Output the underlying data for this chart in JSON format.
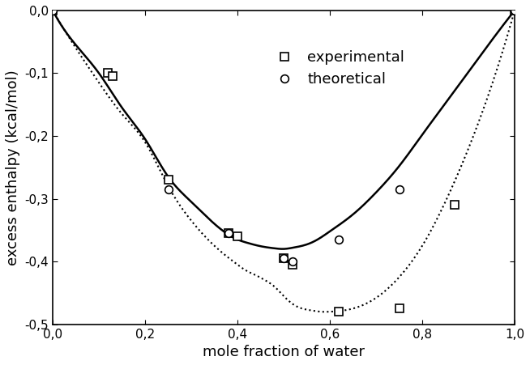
{
  "exp_x": [
    0.0,
    0.12,
    0.13,
    0.25,
    0.38,
    0.4,
    0.5,
    0.52,
    0.62,
    0.75,
    0.87,
    1.0
  ],
  "exp_y": [
    0.0,
    -0.1,
    -0.105,
    -0.27,
    -0.355,
    -0.36,
    -0.395,
    -0.405,
    -0.48,
    -0.475,
    -0.31,
    0.0
  ],
  "theo_x": [
    0.0,
    0.25,
    0.38,
    0.5,
    0.52,
    0.62,
    0.75,
    1.0
  ],
  "theo_y": [
    0.0,
    -0.285,
    -0.355,
    -0.395,
    -0.4,
    -0.365,
    -0.285,
    0.0
  ],
  "solid_curve_x": [
    0.0,
    0.05,
    0.1,
    0.15,
    0.2,
    0.25,
    0.3,
    0.35,
    0.4,
    0.42,
    0.44,
    0.46,
    0.48,
    0.5,
    0.52,
    0.54,
    0.56,
    0.58,
    0.6,
    0.65,
    0.7,
    0.75,
    0.8,
    0.85,
    0.9,
    0.95,
    1.0
  ],
  "solid_curve_y": [
    0.0,
    -0.055,
    -0.1,
    -0.155,
    -0.205,
    -0.265,
    -0.305,
    -0.34,
    -0.365,
    -0.37,
    -0.374,
    -0.377,
    -0.379,
    -0.38,
    -0.378,
    -0.375,
    -0.37,
    -0.362,
    -0.352,
    -0.325,
    -0.29,
    -0.248,
    -0.198,
    -0.148,
    -0.098,
    -0.048,
    0.0
  ],
  "dotted_curve_x": [
    0.0,
    0.05,
    0.1,
    0.15,
    0.2,
    0.25,
    0.3,
    0.35,
    0.4,
    0.42,
    0.44,
    0.46,
    0.48,
    0.5,
    0.52,
    0.54,
    0.56,
    0.58,
    0.6,
    0.65,
    0.7,
    0.75,
    0.8,
    0.85,
    0.9,
    0.95,
    1.0
  ],
  "dotted_curve_y": [
    0.0,
    -0.06,
    -0.115,
    -0.165,
    -0.21,
    -0.28,
    -0.335,
    -0.375,
    -0.405,
    -0.415,
    -0.422,
    -0.43,
    -0.44,
    -0.455,
    -0.468,
    -0.475,
    -0.478,
    -0.48,
    -0.48,
    -0.475,
    -0.458,
    -0.425,
    -0.375,
    -0.305,
    -0.22,
    -0.12,
    0.0
  ],
  "xlabel": "mole fraction of water",
  "ylabel": "excess enthalpy (kcal/mol)",
  "xlim": [
    0.0,
    1.0
  ],
  "ylim": [
    -0.5,
    0.0
  ],
  "xticks": [
    0.0,
    0.2,
    0.4,
    0.6,
    0.8,
    1.0
  ],
  "yticks": [
    0.0,
    -0.1,
    -0.2,
    -0.3,
    -0.4,
    -0.5
  ],
  "xtick_labels": [
    "0,0",
    "0,2",
    "0,4",
    "0,6",
    "0,8",
    "1,0"
  ],
  "ytick_labels": [
    "0,0",
    "-0,1",
    "-0,2",
    "-0,3",
    "-0,4",
    "-0,5"
  ],
  "legend_exp": "experimental",
  "legend_theo": "theoretical",
  "bg_color": "#ffffff",
  "line_color": "#000000",
  "fontsize_label": 13,
  "fontsize_tick": 11
}
